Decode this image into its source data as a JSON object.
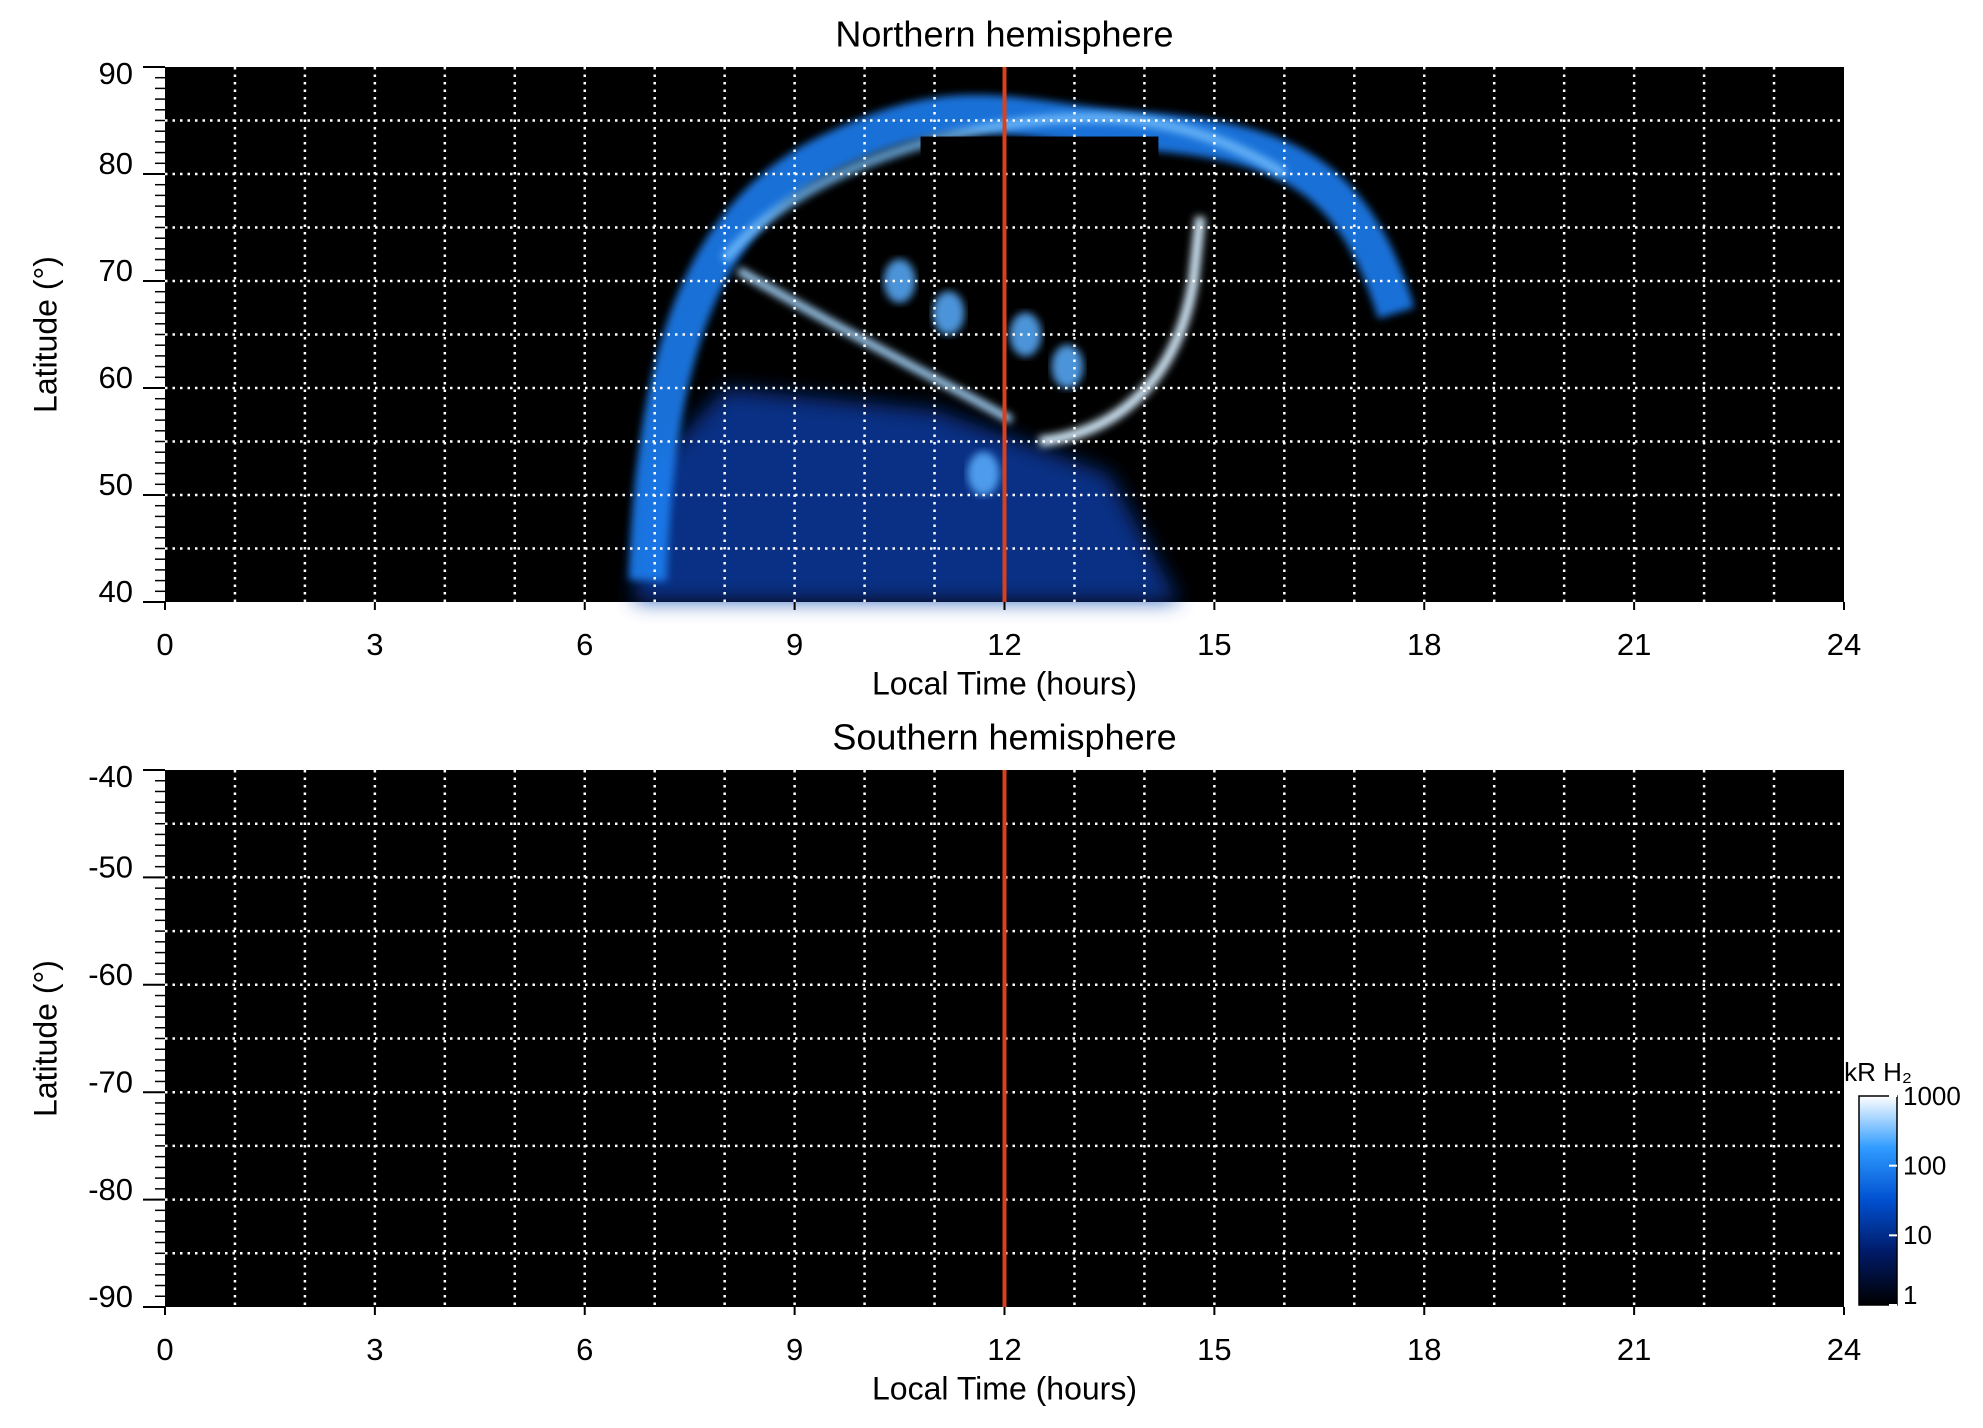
{
  "chart_data": [
    {
      "type": "heatmap",
      "title": "Northern hemisphere",
      "xlabel": "Local Time (hours)",
      "ylabel": "Latitude (°)",
      "xlim": [
        0,
        24
      ],
      "xticks": [
        0,
        3,
        6,
        9,
        12,
        15,
        18,
        21,
        24
      ],
      "xgrid_step": 1,
      "ylim": [
        40,
        90
      ],
      "yticks": [
        40,
        50,
        60,
        70,
        80,
        90
      ],
      "ygrid_step": 5,
      "yminor_step": 1,
      "grid": true,
      "grid_color": "#ffffff",
      "background": "#000000",
      "vline": 12,
      "vline_color": "#d9401e"
    },
    {
      "type": "heatmap",
      "title": "Southern hemisphere",
      "xlabel": "Local Time (hours)",
      "ylabel": "Latitude (°)",
      "xlim": [
        0,
        24
      ],
      "xticks": [
        0,
        3,
        6,
        9,
        12,
        15,
        18,
        21,
        24
      ],
      "xgrid_step": 1,
      "ylim": [
        -90,
        -40
      ],
      "yticks": [
        -90,
        -80,
        -70,
        -60,
        -50,
        -40
      ],
      "ygrid_step": 5,
      "yminor_step": 1,
      "grid": true,
      "grid_color": "#ffffff",
      "background": "#000000",
      "vline": 12,
      "vline_color": "#d9401e",
      "colorbar": {
        "label": "kR H₂",
        "scale": "log",
        "lim": [
          1,
          1000
        ],
        "ticks": [
          1,
          10,
          100,
          1000
        ],
        "colors": [
          "#000000",
          "#001a66",
          "#0050d0",
          "#2f9bff",
          "#ffffff"
        ]
      }
    }
  ]
}
